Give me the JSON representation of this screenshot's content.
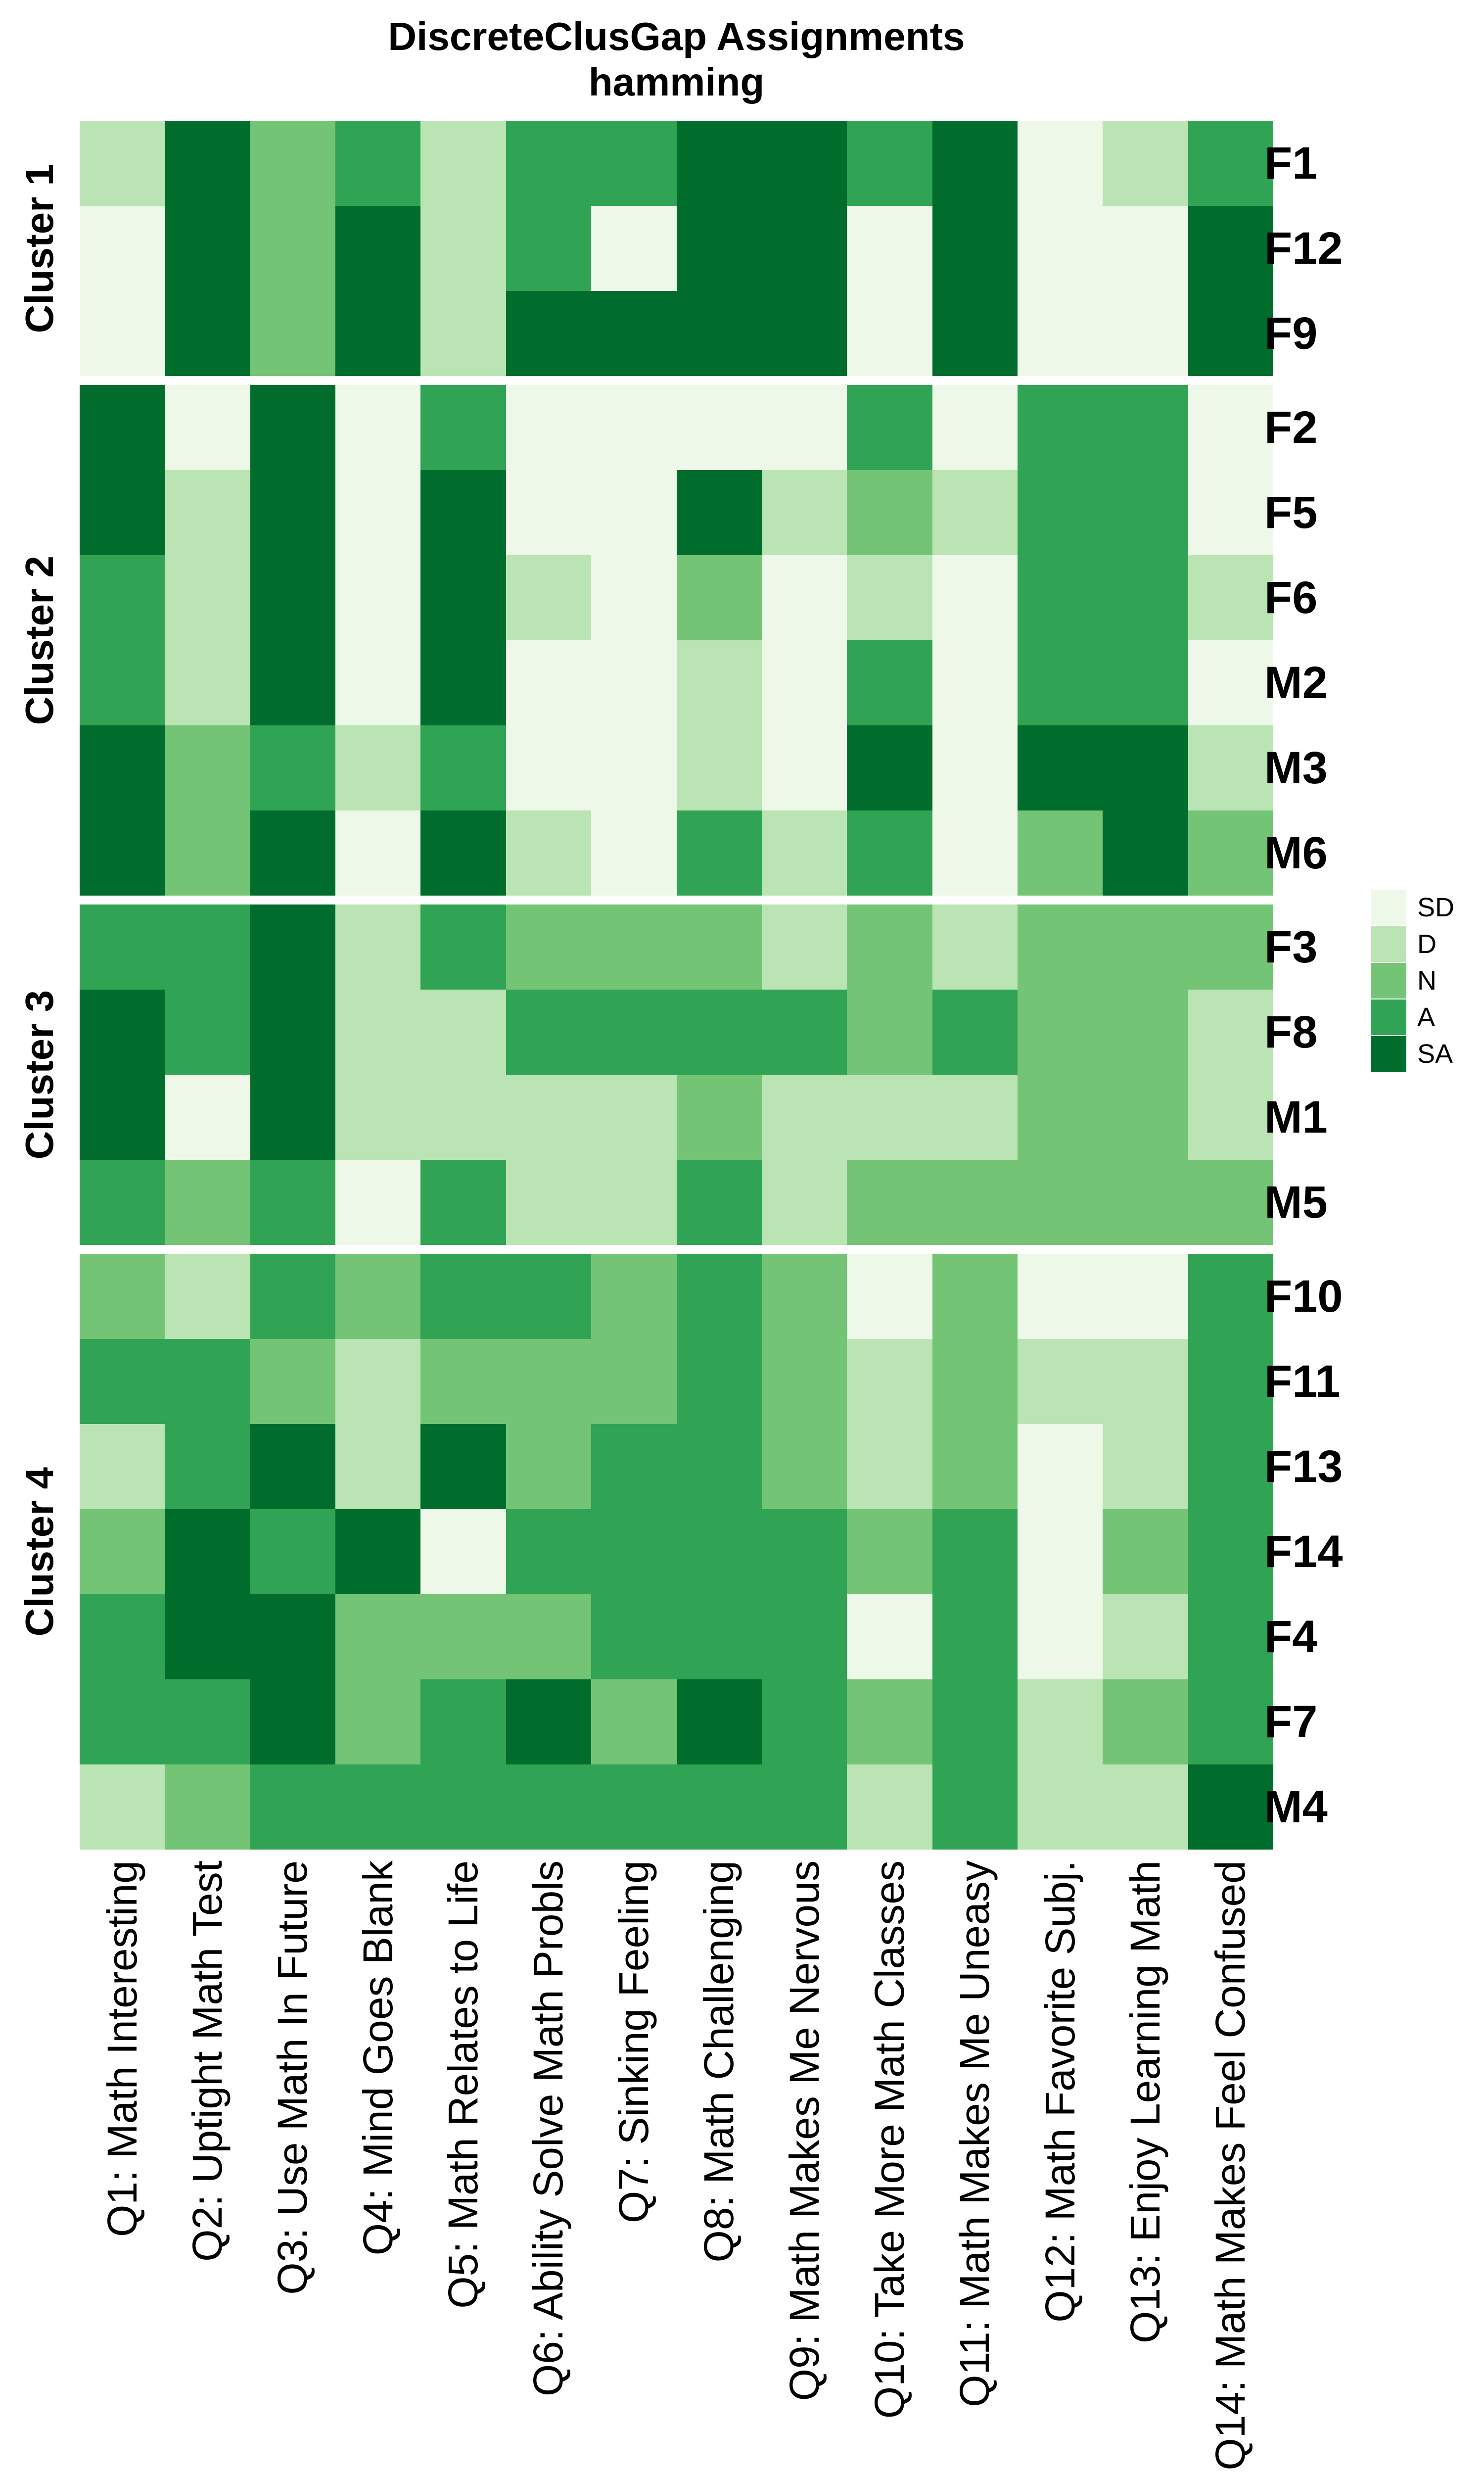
{
  "chart_data": {
    "type": "heatmap",
    "title": "DiscreteClusGap Assignments",
    "subtitle": "hamming",
    "legend_position": "right",
    "value_scale": [
      "SD",
      "D",
      "N",
      "A",
      "SA"
    ],
    "colors": {
      "SD": "#EDF8E9",
      "D": "#BAE4B3",
      "N": "#74C476",
      "A": "#31A354",
      "SA": "#006D2C"
    },
    "columns": [
      "Q1: Math Interesting",
      "Q2: Uptight Math Test",
      "Q3: Use Math In Future",
      "Q4: Mind Goes Blank",
      "Q5: Math Relates to Life",
      "Q6: Ability Solve Math Probls",
      "Q7: Sinking Feeling",
      "Q8: Math Challenging",
      "Q9: Math Makes Me Nervous",
      "Q10: Take More Math Classes",
      "Q11: Math Makes Me Uneasy",
      "Q12: Math Favorite Subj.",
      "Q13: Enjoy Learning Math",
      "Q14: Math Makes Feel Confused"
    ],
    "clusters": [
      {
        "label": "Cluster 1",
        "rows": [
          {
            "id": "F1",
            "values": [
              "D",
              "SA",
              "N",
              "A",
              "D",
              "A",
              "A",
              "SA",
              "SA",
              "A",
              "SA",
              "SD",
              "D",
              "A"
            ]
          },
          {
            "id": "F12",
            "values": [
              "SD",
              "SA",
              "N",
              "SA",
              "D",
              "A",
              "SD",
              "SA",
              "SA",
              "SD",
              "SA",
              "SD",
              "SD",
              "SA"
            ]
          },
          {
            "id": "F9",
            "values": [
              "SD",
              "SA",
              "N",
              "SA",
              "D",
              "SA",
              "SA",
              "SA",
              "SA",
              "SD",
              "SA",
              "SD",
              "SD",
              "SA"
            ]
          }
        ]
      },
      {
        "label": "Cluster 2",
        "rows": [
          {
            "id": "F2",
            "values": [
              "SA",
              "SD",
              "SA",
              "SD",
              "A",
              "SD",
              "SD",
              "SD",
              "SD",
              "A",
              "SD",
              "A",
              "A",
              "SD"
            ]
          },
          {
            "id": "F5",
            "values": [
              "SA",
              "D",
              "SA",
              "SD",
              "SA",
              "SD",
              "SD",
              "SA",
              "D",
              "N",
              "D",
              "A",
              "A",
              "SD"
            ]
          },
          {
            "id": "F6",
            "values": [
              "A",
              "D",
              "SA",
              "SD",
              "SA",
              "D",
              "SD",
              "N",
              "SD",
              "D",
              "SD",
              "A",
              "A",
              "D"
            ]
          },
          {
            "id": "M2",
            "values": [
              "A",
              "D",
              "SA",
              "SD",
              "SA",
              "SD",
              "SD",
              "D",
              "SD",
              "A",
              "SD",
              "A",
              "A",
              "SD"
            ]
          },
          {
            "id": "M3",
            "values": [
              "SA",
              "N",
              "A",
              "D",
              "A",
              "SD",
              "SD",
              "D",
              "SD",
              "SA",
              "SD",
              "SA",
              "SA",
              "D"
            ]
          },
          {
            "id": "M6",
            "values": [
              "SA",
              "N",
              "SA",
              "SD",
              "SA",
              "D",
              "SD",
              "A",
              "D",
              "A",
              "SD",
              "N",
              "SA",
              "N"
            ]
          }
        ]
      },
      {
        "label": "Cluster 3",
        "rows": [
          {
            "id": "F3",
            "values": [
              "A",
              "A",
              "SA",
              "D",
              "A",
              "N",
              "N",
              "N",
              "D",
              "N",
              "D",
              "N",
              "N",
              "N"
            ]
          },
          {
            "id": "F8",
            "values": [
              "SA",
              "A",
              "SA",
              "D",
              "D",
              "A",
              "A",
              "A",
              "A",
              "N",
              "A",
              "N",
              "N",
              "D"
            ]
          },
          {
            "id": "M1",
            "values": [
              "SA",
              "SD",
              "SA",
              "D",
              "D",
              "D",
              "D",
              "N",
              "D",
              "D",
              "D",
              "N",
              "N",
              "D"
            ]
          },
          {
            "id": "M5",
            "values": [
              "A",
              "N",
              "A",
              "SD",
              "A",
              "D",
              "D",
              "A",
              "D",
              "N",
              "N",
              "N",
              "N",
              "N"
            ]
          }
        ]
      },
      {
        "label": "Cluster 4",
        "rows": [
          {
            "id": "F10",
            "values": [
              "N",
              "D",
              "A",
              "N",
              "A",
              "A",
              "N",
              "A",
              "N",
              "SD",
              "N",
              "SD",
              "SD",
              "A"
            ]
          },
          {
            "id": "F11",
            "values": [
              "A",
              "A",
              "N",
              "D",
              "N",
              "N",
              "N",
              "A",
              "N",
              "D",
              "N",
              "D",
              "D",
              "A"
            ]
          },
          {
            "id": "F13",
            "values": [
              "D",
              "A",
              "SA",
              "D",
              "SA",
              "N",
              "A",
              "A",
              "N",
              "D",
              "N",
              "SD",
              "D",
              "A"
            ]
          },
          {
            "id": "F14",
            "values": [
              "N",
              "SA",
              "A",
              "SA",
              "SD",
              "A",
              "A",
              "A",
              "A",
              "N",
              "A",
              "SD",
              "N",
              "A"
            ]
          },
          {
            "id": "F4",
            "values": [
              "A",
              "SA",
              "SA",
              "N",
              "N",
              "N",
              "A",
              "A",
              "A",
              "SD",
              "A",
              "SD",
              "D",
              "A"
            ]
          },
          {
            "id": "F7",
            "values": [
              "A",
              "A",
              "SA",
              "N",
              "A",
              "SA",
              "N",
              "SA",
              "A",
              "N",
              "A",
              "D",
              "N",
              "A"
            ]
          },
          {
            "id": "M4",
            "values": [
              "D",
              "N",
              "A",
              "A",
              "A",
              "A",
              "A",
              "A",
              "A",
              "D",
              "A",
              "D",
              "D",
              "SA"
            ]
          }
        ]
      }
    ]
  }
}
